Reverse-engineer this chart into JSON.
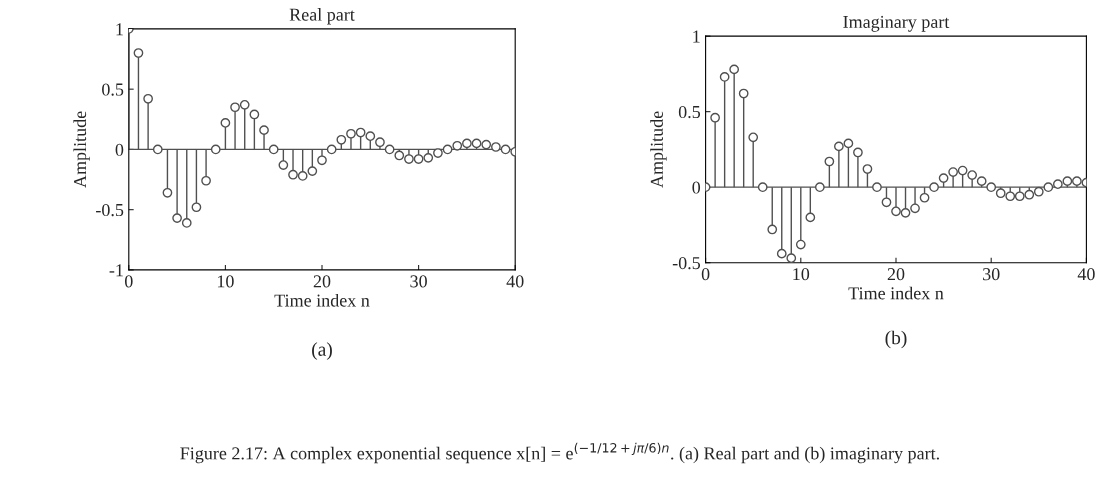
{
  "chart_data": [
    {
      "type": "lollipop",
      "title": "Real part",
      "xlabel": "Time index n",
      "ylabel": "Amplitude",
      "x": [
        0,
        1,
        2,
        3,
        4,
        5,
        6,
        7,
        8,
        9,
        10,
        11,
        12,
        13,
        14,
        15,
        16,
        17,
        18,
        19,
        20,
        21,
        22,
        23,
        24,
        25,
        26,
        27,
        28,
        29,
        30,
        31,
        32,
        33,
        34,
        35,
        36,
        37,
        38,
        39,
        40
      ],
      "series": [
        {
          "color": "#505050",
          "values": [
            1,
            0.8,
            0.42,
            0,
            -0.36,
            -0.57,
            -0.61,
            -0.48,
            -0.26,
            0,
            0.22,
            0.35,
            0.37,
            0.29,
            0.16,
            0,
            -0.13,
            -0.21,
            -0.22,
            -0.18,
            -0.09,
            0,
            0.08,
            0.13,
            0.14,
            0.11,
            0.06,
            0,
            -0.05,
            -0.08,
            -0.08,
            -0.07,
            -0.03,
            0,
            0.03,
            0.05,
            0.05,
            0.04,
            0.02,
            0,
            -0.02
          ]
        }
      ],
      "xlim": [
        0,
        40
      ],
      "xticks": [
        0,
        10,
        20,
        30,
        40
      ],
      "ylim": [
        -1,
        1
      ],
      "yticks": [
        -1,
        -0.5,
        0,
        0.5,
        1
      ],
      "ref_lines": [
        {
          "axis": "y",
          "value": 0,
          "color": "#505050"
        }
      ],
      "marker": "circle",
      "grid": false,
      "annotations": [
        "(a)",
        "Figure 2.17: A complex exponential sequence x[n] = e$^{(−1/12+jπ/6)n}$. (a) Real part and (b) imaginary part."
      ]
    },
    {
      "type": "lollipop",
      "title": "Imaginary part",
      "xlabel": "Time index n",
      "ylabel": "Amplitude",
      "x": [
        0,
        1,
        2,
        3,
        4,
        5,
        6,
        7,
        8,
        9,
        10,
        11,
        12,
        13,
        14,
        15,
        16,
        17,
        18,
        19,
        20,
        21,
        22,
        23,
        24,
        25,
        26,
        27,
        28,
        29,
        30,
        31,
        32,
        33,
        34,
        35,
        36,
        37,
        38,
        39,
        40
      ],
      "series": [
        {
          "color": "#505050",
          "values": [
            0,
            0.46,
            0.73,
            0.78,
            0.62,
            0.33,
            0,
            -0.28,
            -0.44,
            -0.47,
            -0.38,
            -0.2,
            0,
            0.17,
            0.27,
            0.29,
            0.23,
            0.12,
            0,
            -0.1,
            -0.16,
            -0.17,
            -0.14,
            -0.07,
            0,
            0.06,
            0.1,
            0.11,
            0.08,
            0.04,
            0,
            -0.04,
            -0.06,
            -0.06,
            -0.05,
            -0.03,
            0,
            0.02,
            0.04,
            0.04,
            0.03
          ]
        }
      ],
      "xlim": [
        0,
        40
      ],
      "xticks": [
        0,
        10,
        20,
        30,
        40
      ],
      "ylim": [
        -0.5,
        1
      ],
      "yticks": [
        -0.5,
        0,
        0.5,
        1
      ],
      "ref_lines": [
        {
          "axis": "y",
          "value": 0,
          "color": "#505050"
        }
      ],
      "marker": "circle",
      "grid": false,
      "annotations": [
        "(b)"
      ]
    }
  ]
}
